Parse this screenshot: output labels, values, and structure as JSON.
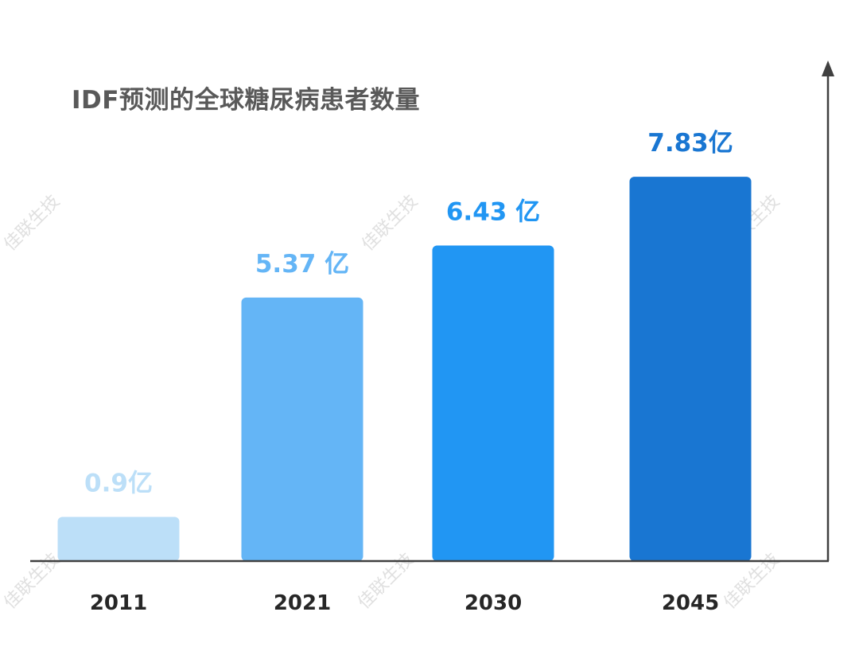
{
  "chart_data": {
    "type": "bar",
    "title": "IDF预测的全球糖尿病患者数量",
    "categories": [
      "2011",
      "2021",
      "2030",
      "2045"
    ],
    "values": [
      0.9,
      5.37,
      6.43,
      7.83
    ],
    "data_labels": [
      "0.9亿",
      "5.37 亿",
      "6.43 亿",
      "7.83亿"
    ],
    "bar_colors": [
      "#bcdff8",
      "#64b5f6",
      "#2196f3",
      "#1976d2"
    ],
    "label_colors": [
      "#bcdff8",
      "#64b5f6",
      "#2196f3",
      "#1976d2"
    ],
    "xlabel": "",
    "ylabel": "",
    "ylim": [
      0,
      9
    ],
    "grid": false,
    "axis_color": "#404040",
    "tick_label_color": "#262626",
    "watermark": "佳联生技"
  }
}
